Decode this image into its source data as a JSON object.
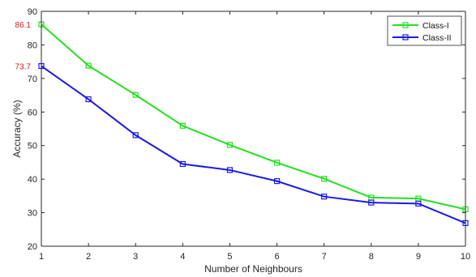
{
  "chart_data": {
    "type": "line",
    "xlabel": "Number of Neighbours",
    "ylabel": "Accuracy (%)",
    "xlim": [
      1,
      10
    ],
    "ylim": [
      20,
      90
    ],
    "xticks": [
      1,
      2,
      3,
      4,
      5,
      6,
      7,
      8,
      9,
      10
    ],
    "yticks": [
      20,
      30,
      40,
      50,
      60,
      70,
      80,
      90
    ],
    "grid": false,
    "legend_position": "top-right",
    "marker": "square",
    "x": [
      1,
      2,
      3,
      4,
      5,
      6,
      7,
      8,
      9,
      10
    ],
    "series": [
      {
        "name": "Class-I",
        "color": "#22e01f",
        "values": [
          86.1,
          73.8,
          65.1,
          55.9,
          50.2,
          44.9,
          40.1,
          34.5,
          34.2,
          31.0
        ]
      },
      {
        "name": "Class-II",
        "color": "#1a1ae6",
        "values": [
          73.7,
          63.8,
          53.1,
          44.5,
          42.7,
          39.4,
          34.8,
          33.0,
          32.7,
          26.9
        ]
      }
    ],
    "annotations": [
      {
        "text": "86.1",
        "x": 1,
        "y": 86.1,
        "color": "#d11a1a"
      },
      {
        "text": "73.7",
        "x": 1,
        "y": 73.7,
        "color": "#d11a1a"
      }
    ]
  }
}
